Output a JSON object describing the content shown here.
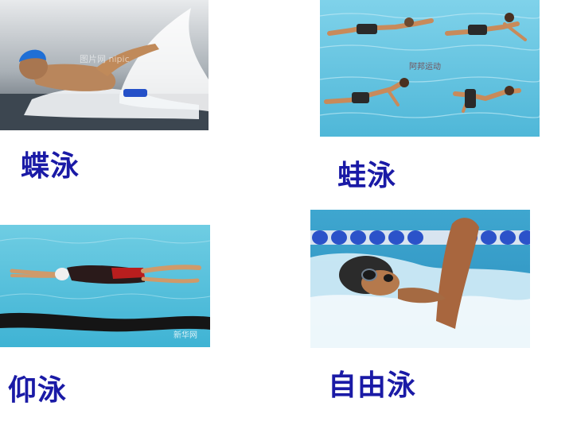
{
  "slide": {
    "panels": [
      {
        "id": "butterfly",
        "caption": "蝶泳",
        "watermark": "图片网 nipic"
      },
      {
        "id": "breaststroke",
        "caption": "蛙泳",
        "watermark": "阿邦运动"
      },
      {
        "id": "backstroke",
        "caption": "仰泳",
        "watermark": "新华网"
      },
      {
        "id": "freestyle",
        "caption": "自由泳",
        "watermark": ""
      }
    ]
  },
  "colors": {
    "caption": "#1a1aa6",
    "pool_water": "#5cc4e0",
    "splash": "#ffffff",
    "skin": "#c98d5a",
    "cap_blue": "#1f6fd6",
    "lane_line": "#1a1a1a"
  }
}
